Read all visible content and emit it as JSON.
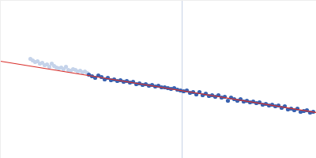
{
  "chart_data": {
    "type": "scatter",
    "tick_labels": false,
    "grid": false,
    "xlim": [
      0,
      400
    ],
    "ylim": [
      0,
      200
    ],
    "vline_x": 230,
    "series": [
      {
        "type": "scatter",
        "marker": "circle",
        "color": "#c5d3ea",
        "x": [
          38,
          41,
          44,
          47,
          50,
          53,
          56,
          59,
          62,
          65,
          68,
          71,
          74,
          77,
          80,
          83,
          86,
          89,
          92,
          95,
          98,
          101,
          104,
          107,
          110
        ],
        "values": [
          126,
          124,
          122,
          123,
          120,
          121,
          118,
          119,
          116,
          120,
          117,
          115,
          114,
          115,
          113,
          116,
          112,
          111,
          113,
          112,
          110,
          111,
          109,
          110,
          108
        ]
      },
      {
        "type": "scatter",
        "marker": "circle",
        "color": "#3a62b0",
        "x": [
          112,
          116,
          120,
          124,
          128,
          132,
          136,
          140,
          144,
          148,
          152,
          156,
          160,
          164,
          168,
          172,
          176,
          180,
          184,
          188,
          192,
          196,
          200,
          204,
          208,
          212,
          216,
          220,
          224,
          228,
          232,
          236,
          240,
          244,
          248,
          252,
          256,
          260,
          264,
          268,
          272,
          276,
          280,
          284,
          288,
          292,
          296,
          300,
          304,
          308,
          312,
          316,
          320,
          324,
          328,
          332,
          336,
          340,
          344,
          348,
          352,
          356,
          360,
          364,
          368,
          372,
          376,
          380,
          384,
          388,
          392,
          396
        ],
        "values": [
          106,
          104,
          102,
          105,
          103,
          100,
          102,
          99,
          100,
          98,
          99,
          97,
          98,
          96,
          97,
          94,
          95,
          93,
          94,
          92,
          93,
          91,
          92,
          90,
          90,
          89,
          88,
          89,
          87,
          86,
          85,
          86,
          83,
          84,
          81,
          84,
          80,
          82,
          79,
          80,
          78,
          80,
          77,
          78,
          73,
          77,
          75,
          73,
          75,
          72,
          73,
          71,
          72,
          70,
          71,
          68,
          69,
          67,
          68,
          66,
          67,
          64,
          66,
          62,
          63,
          61,
          63,
          59,
          60,
          61,
          58,
          59
        ]
      },
      {
        "type": "line",
        "line_style": "solid",
        "color": "#d9302c",
        "x": [
          0,
          400
        ],
        "values": [
          123,
          58
        ]
      }
    ]
  }
}
